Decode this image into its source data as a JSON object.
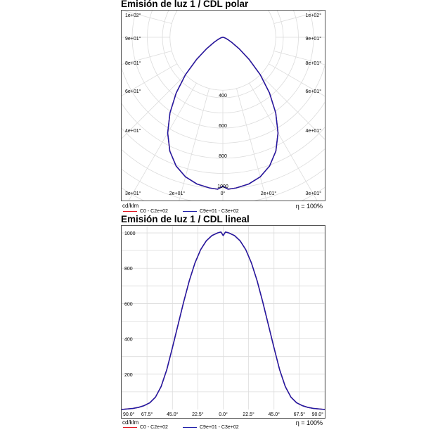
{
  "colors": {
    "series_red": "#e0141e",
    "series_blue": "#1c1ca8",
    "grid": "#dcdcdc",
    "border": "#555555"
  },
  "chart_data": [
    {
      "type": "polar",
      "title": "Emisión de luz 1 / CDL polar",
      "unit": "cd/klm",
      "efficiency": "η = 100%",
      "angle_labels_left": [
        "1e+02°",
        "9e+01°",
        "8e+01°",
        "6e+01°",
        "4e+01°",
        "3e+01°"
      ],
      "angle_labels_right": [
        "1e+02°",
        "9e+01°",
        "8e+01°",
        "6e+01°",
        "4e+01°",
        "3e+01°"
      ],
      "bottom_labels": [
        "2e+01°",
        "0°",
        "2e+01°"
      ],
      "radial_ticks": [
        400,
        600,
        800,
        1000
      ],
      "rmax": 1000,
      "legend": [
        "C0 - C2e+02",
        "C9e+01 - C3e+02"
      ],
      "series": [
        {
          "name": "C0 - C2e+02",
          "angles": [
            0,
            2,
            5,
            10,
            15,
            20,
            25,
            30,
            35,
            40,
            45,
            50,
            55,
            60,
            65,
            70,
            75,
            80,
            85,
            90
          ],
          "values": [
            985,
            1005,
            1000,
            985,
            955,
            905,
            830,
            730,
            610,
            480,
            350,
            225,
            130,
            70,
            38,
            22,
            12,
            6,
            3,
            0
          ]
        },
        {
          "name": "C9e+01 - C3e+02",
          "angles": [
            0,
            2,
            5,
            10,
            15,
            20,
            25,
            30,
            35,
            40,
            45,
            50,
            55,
            60,
            65,
            70,
            75,
            80,
            85,
            90
          ],
          "values": [
            985,
            1005,
            1000,
            985,
            955,
            905,
            830,
            730,
            610,
            480,
            350,
            225,
            130,
            70,
            38,
            22,
            12,
            6,
            3,
            0
          ]
        }
      ]
    },
    {
      "type": "line",
      "title": "Emisión de luz 1 / CDL lineal",
      "unit": "cd/klm",
      "efficiency": "η = 100%",
      "xlim": [
        -90,
        90
      ],
      "ylim": [
        0,
        1040
      ],
      "x_tick_labels": [
        "90.0°",
        "67.5°",
        "45.0°",
        "22.5°",
        "0.0°",
        "22.5°",
        "45.0°",
        "67.5°",
        "90.0°"
      ],
      "y_ticks": [
        200,
        400,
        600,
        800,
        1000
      ],
      "legend": [
        "C0 - C2e+02",
        "C9e+01 - C3e+02"
      ],
      "series": [
        {
          "name": "C0 - C2e+02",
          "x": [
            -90,
            -85,
            -80,
            -75,
            -70,
            -65,
            -60,
            -55,
            -50,
            -45,
            -40,
            -35,
            -30,
            -25,
            -20,
            -15,
            -10,
            -5,
            -2,
            0,
            2,
            5,
            10,
            15,
            20,
            25,
            30,
            35,
            40,
            45,
            50,
            55,
            60,
            65,
            70,
            75,
            80,
            85,
            90
          ],
          "y": [
            0,
            3,
            6,
            12,
            22,
            38,
            70,
            130,
            225,
            350,
            480,
            610,
            730,
            830,
            905,
            955,
            985,
            1000,
            1005,
            985,
            1005,
            1000,
            985,
            955,
            905,
            830,
            730,
            610,
            480,
            350,
            225,
            130,
            70,
            38,
            22,
            12,
            6,
            3,
            0
          ]
        },
        {
          "name": "C9e+01 - C3e+02",
          "x": [
            -90,
            -85,
            -80,
            -75,
            -70,
            -65,
            -60,
            -55,
            -50,
            -45,
            -40,
            -35,
            -30,
            -25,
            -20,
            -15,
            -10,
            -5,
            -2,
            0,
            2,
            5,
            10,
            15,
            20,
            25,
            30,
            35,
            40,
            45,
            50,
            55,
            60,
            65,
            70,
            75,
            80,
            85,
            90
          ],
          "y": [
            0,
            3,
            6,
            12,
            22,
            38,
            70,
            130,
            225,
            350,
            480,
            610,
            730,
            830,
            905,
            955,
            985,
            1000,
            1005,
            985,
            1005,
            1000,
            985,
            955,
            905,
            830,
            730,
            610,
            480,
            350,
            225,
            130,
            70,
            38,
            22,
            12,
            6,
            3,
            0
          ]
        }
      ]
    }
  ]
}
